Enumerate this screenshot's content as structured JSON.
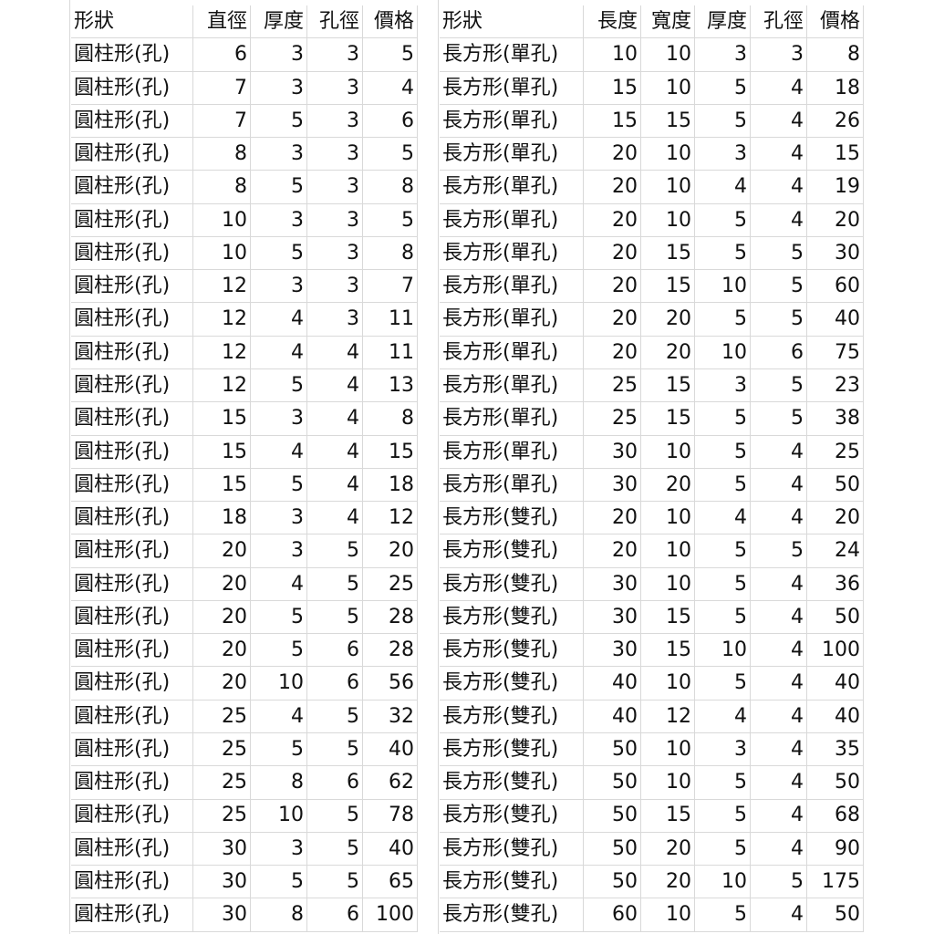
{
  "left_table": {
    "header": [
      "形狀",
      "直徑",
      "厚度",
      "孔徑",
      "價格"
    ],
    "rows": [
      [
        "圓柱形(孔)",
        6,
        3,
        3,
        5
      ],
      [
        "圓柱形(孔)",
        7,
        3,
        3,
        4
      ],
      [
        "圓柱形(孔)",
        7,
        5,
        3,
        6
      ],
      [
        "圓柱形(孔)",
        8,
        3,
        3,
        5
      ],
      [
        "圓柱形(孔)",
        8,
        5,
        3,
        8
      ],
      [
        "圓柱形(孔)",
        10,
        3,
        3,
        5
      ],
      [
        "圓柱形(孔)",
        10,
        5,
        3,
        8
      ],
      [
        "圓柱形(孔)",
        12,
        3,
        3,
        7
      ],
      [
        "圓柱形(孔)",
        12,
        4,
        3,
        11
      ],
      [
        "圓柱形(孔)",
        12,
        4,
        4,
        11
      ],
      [
        "圓柱形(孔)",
        12,
        5,
        4,
        13
      ],
      [
        "圓柱形(孔)",
        15,
        3,
        4,
        8
      ],
      [
        "圓柱形(孔)",
        15,
        4,
        4,
        15
      ],
      [
        "圓柱形(孔)",
        15,
        5,
        4,
        18
      ],
      [
        "圓柱形(孔)",
        18,
        3,
        4,
        12
      ],
      [
        "圓柱形(孔)",
        20,
        3,
        5,
        20
      ],
      [
        "圓柱形(孔)",
        20,
        4,
        5,
        25
      ],
      [
        "圓柱形(孔)",
        20,
        5,
        5,
        28
      ],
      [
        "圓柱形(孔)",
        20,
        5,
        6,
        28
      ],
      [
        "圓柱形(孔)",
        20,
        10,
        6,
        56
      ],
      [
        "圓柱形(孔)",
        25,
        4,
        5,
        32
      ],
      [
        "圓柱形(孔)",
        25,
        5,
        5,
        40
      ],
      [
        "圓柱形(孔)",
        25,
        8,
        6,
        62
      ],
      [
        "圓柱形(孔)",
        25,
        10,
        5,
        78
      ],
      [
        "圓柱形(孔)",
        30,
        3,
        5,
        40
      ],
      [
        "圓柱形(孔)",
        30,
        5,
        5,
        65
      ],
      [
        "圓柱形(孔)",
        30,
        8,
        6,
        100
      ]
    ]
  },
  "right_table": {
    "header": [
      "形狀",
      "長度",
      "寬度",
      "厚度",
      "孔徑",
      "價格"
    ],
    "rows": [
      [
        "長方形(單孔)",
        10,
        10,
        3,
        3,
        8
      ],
      [
        "長方形(單孔)",
        15,
        10,
        5,
        4,
        18
      ],
      [
        "長方形(單孔)",
        15,
        15,
        5,
        4,
        26
      ],
      [
        "長方形(單孔)",
        20,
        10,
        3,
        4,
        15
      ],
      [
        "長方形(單孔)",
        20,
        10,
        4,
        4,
        19
      ],
      [
        "長方形(單孔)",
        20,
        10,
        5,
        4,
        20
      ],
      [
        "長方形(單孔)",
        20,
        15,
        5,
        5,
        30
      ],
      [
        "長方形(單孔)",
        20,
        15,
        10,
        5,
        60
      ],
      [
        "長方形(單孔)",
        20,
        20,
        5,
        5,
        40
      ],
      [
        "長方形(單孔)",
        20,
        20,
        10,
        6,
        75
      ],
      [
        "長方形(單孔)",
        25,
        15,
        3,
        5,
        23
      ],
      [
        "長方形(單孔)",
        25,
        15,
        5,
        5,
        38
      ],
      [
        "長方形(單孔)",
        30,
        10,
        5,
        4,
        25
      ],
      [
        "長方形(單孔)",
        30,
        20,
        5,
        4,
        50
      ],
      [
        "長方形(雙孔)",
        20,
        10,
        4,
        4,
        20
      ],
      [
        "長方形(雙孔)",
        20,
        10,
        5,
        5,
        24
      ],
      [
        "長方形(雙孔)",
        30,
        10,
        5,
        4,
        36
      ],
      [
        "長方形(雙孔)",
        30,
        15,
        5,
        4,
        50
      ],
      [
        "長方形(雙孔)",
        30,
        15,
        10,
        4,
        100
      ],
      [
        "長方形(雙孔)",
        40,
        10,
        5,
        4,
        40
      ],
      [
        "長方形(雙孔)",
        40,
        12,
        4,
        4,
        40
      ],
      [
        "長方形(雙孔)",
        50,
        10,
        3,
        4,
        35
      ],
      [
        "長方形(雙孔)",
        50,
        10,
        5,
        4,
        50
      ],
      [
        "長方形(雙孔)",
        50,
        15,
        5,
        4,
        68
      ],
      [
        "長方形(雙孔)",
        50,
        20,
        5,
        4,
        90
      ],
      [
        "長方形(雙孔)",
        50,
        20,
        10,
        5,
        175
      ],
      [
        "長方形(雙孔)",
        60,
        10,
        5,
        4,
        50
      ]
    ]
  }
}
